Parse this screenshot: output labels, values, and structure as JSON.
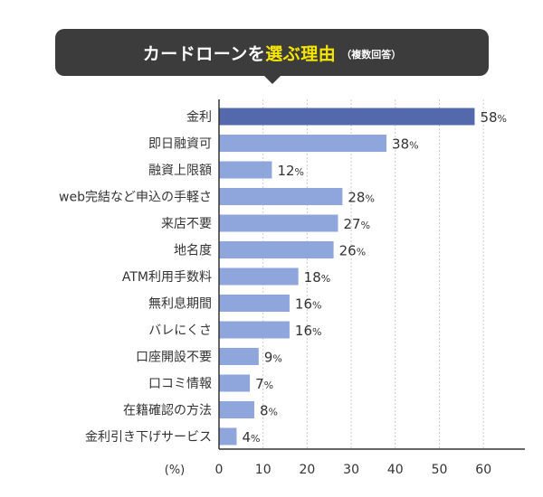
{
  "banner": {
    "title": "カードローンを",
    "highlight": "選ぶ理由",
    "note": "（複数回答）"
  },
  "colors": {
    "banner_bg": "#3c3c3c",
    "highlight": "#f7e600",
    "bar_top": "#5468ac",
    "bar": "#8fa6dc",
    "grid": "#cccccc"
  },
  "chart_data": {
    "type": "bar",
    "orientation": "horizontal",
    "categories": [
      "金利",
      "即日融資可",
      "融資上限額",
      "web完結など申込の手軽さ",
      "来店不要",
      "地名度",
      "ATM利用手数料",
      "無利息期間",
      "バレにくさ",
      "口座開設不要",
      "口コミ情報",
      "在籍確認の方法",
      "金利引き下げサービス"
    ],
    "values": [
      58,
      38,
      12,
      28,
      27,
      26,
      18,
      16,
      16,
      9,
      7,
      8,
      4
    ],
    "value_suffix": "%",
    "xunit": "(%)",
    "xlim": [
      0,
      60
    ],
    "xticks": [
      0,
      10,
      20,
      30,
      40,
      50,
      60
    ],
    "grid": true,
    "highlight_index": 0
  }
}
